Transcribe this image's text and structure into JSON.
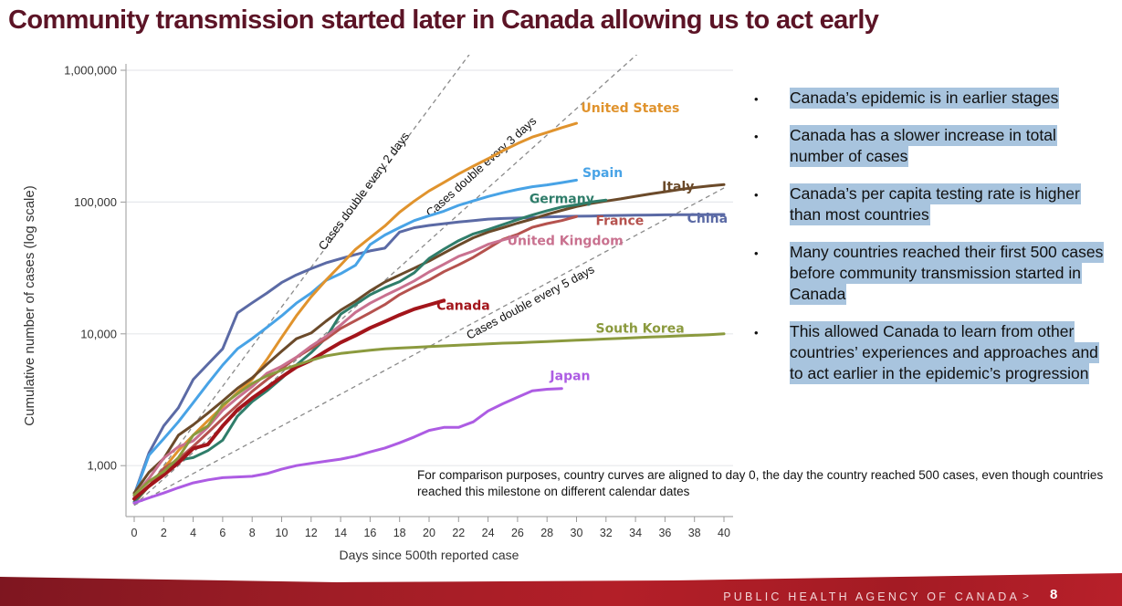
{
  "slide": {
    "title": "Community transmission started later in Canada allowing us to act early",
    "footer_org": "PUBLIC HEALTH AGENCY OF CANADA",
    "footer_chevron": ">",
    "page_number": "8"
  },
  "bullets": [
    "Canada’s epidemic is in earlier stages",
    "Canada has a slower increase in total number of cases",
    "Canada’s per capita testing rate is higher than most countries",
    "Many countries reached their first 500 cases before community transmission started in Canada",
    "This allowed Canada to learn from other countries’ experiences and approaches and to act earlier in the epidemic’s progression"
  ],
  "bullet_symbol": "•",
  "note": "For comparison purposes, country curves are aligned to day 0, the day the country reached 500 cases, even though countries reached this milestone on different calendar dates",
  "colors": {
    "title": "#5c1426",
    "highlight": "#a8c4de",
    "footer_red": "#b31f28"
  },
  "chart_data": {
    "type": "line",
    "title": "",
    "xlabel": "Days since 500th reported case",
    "ylabel": "Cumulative number of cases (log scale)",
    "yscale": "log",
    "xlim": [
      0,
      40
    ],
    "ylim": [
      417,
      1000000
    ],
    "x_ticks": [
      0,
      2,
      4,
      6,
      8,
      10,
      12,
      14,
      16,
      18,
      20,
      22,
      24,
      26,
      28,
      30,
      32,
      34,
      36,
      38,
      40
    ],
    "y_ticks": [
      1000,
      10000,
      100000,
      1000000
    ],
    "y_tick_labels": [
      "1,000",
      "10,000",
      "100,000",
      "1,000,000"
    ],
    "grid": "horizontal",
    "reference_lines": [
      {
        "label": "Cases double every 2 days",
        "doubling_days": 2,
        "start": 500
      },
      {
        "label": "Cases double every 3 days",
        "doubling_days": 3,
        "start": 500
      },
      {
        "label": "Cases double every 5 days",
        "doubling_days": 5,
        "start": 500
      }
    ],
    "series": [
      {
        "name": "China",
        "color": "#5b6aa5",
        "width": 3,
        "values": [
          600,
          1250,
          2000,
          2750,
          4500,
          5900,
          7700,
          14400,
          17200,
          20400,
          24500,
          28000,
          31200,
          34500,
          37200,
          40000,
          42600,
          44700,
          59200,
          63900,
          66500,
          68500,
          70500,
          72400,
          74200,
          75000,
          75600,
          76200,
          77000,
          77700,
          78100,
          78400,
          78800,
          79200,
          79500,
          79800,
          80000,
          80200,
          80300,
          80400,
          80500
        ]
      },
      {
        "name": "Spain",
        "color": "#48a3e6",
        "width": 3,
        "values": [
          590,
          1200,
          1600,
          2150,
          3000,
          4200,
          5800,
          7700,
          9200,
          11200,
          13700,
          17100,
          20400,
          25400,
          28600,
          33100,
          47600,
          56200,
          64000,
          72300,
          78700,
          85200,
          94400,
          102100,
          110200,
          117700,
          124700,
          130700,
          135000,
          140500,
          146700
        ]
      },
      {
        "name": "United States",
        "color": "#e0932d",
        "width": 3,
        "values": [
          520,
          700,
          950,
          1300,
          1700,
          2200,
          2800,
          3600,
          4500,
          6400,
          9400,
          13700,
          19100,
          25500,
          33300,
          43700,
          53700,
          65800,
          83800,
          101700,
          121500,
          140900,
          163400,
          187400,
          213300,
          245400,
          277800,
          311400,
          336800,
          366600,
          396200
        ]
      },
      {
        "name": "Italy",
        "color": "#6b4a2a",
        "width": 3,
        "values": [
          620,
          890,
          1130,
          1700,
          2040,
          2500,
          3090,
          3860,
          4640,
          5880,
          7380,
          9170,
          10150,
          12460,
          15110,
          17660,
          21160,
          24750,
          27980,
          31510,
          35710,
          41040,
          47020,
          53580,
          59140,
          63930,
          69180,
          74390,
          80590,
          86500,
          92470,
          97690,
          101740,
          105790,
          110570,
          115240,
          119830,
          124630,
          128950,
          132550,
          135590
        ]
      },
      {
        "name": "Germany",
        "color": "#2f7d6a",
        "width": 3,
        "values": [
          530,
          700,
          850,
          1100,
          1150,
          1300,
          1560,
          2370,
          3060,
          3700,
          4600,
          5800,
          7200,
          9300,
          14100,
          16700,
          19800,
          22400,
          24900,
          29100,
          37300,
          43900,
          50900,
          57300,
          61900,
          67400,
          73500,
          79700,
          85900,
          91700,
          95400,
          100100,
          103400
        ]
      },
      {
        "name": "France",
        "color": "#b5524e",
        "width": 3,
        "values": [
          560,
          700,
          950,
          1120,
          1400,
          1780,
          2280,
          2880,
          3660,
          4500,
          5420,
          6630,
          7730,
          9130,
          10990,
          12610,
          14460,
          16690,
          19860,
          22630,
          25600,
          29600,
          33400,
          38100,
          44500,
          52100,
          56900,
          64300,
          68600,
          72400,
          77600
        ]
      },
      {
        "name": "United Kingdom",
        "color": "#c9718f",
        "width": 3,
        "values": [
          590,
          800,
          1140,
          1390,
          1540,
          1960,
          2630,
          3270,
          3980,
          5020,
          5680,
          6650,
          8080,
          9530,
          11660,
          14550,
          17100,
          19500,
          22100,
          25200,
          29500,
          33700,
          38700,
          42500,
          47800,
          51600,
          55200
        ]
      },
      {
        "name": "Canada",
        "color": "#a3151b",
        "width": 4,
        "values": [
          560,
          700,
          850,
          1050,
          1350,
          1450,
          2000,
          2650,
          3250,
          3900,
          4700,
          5600,
          6300,
          7400,
          8600,
          9700,
          11100,
          12400,
          13900,
          15400,
          16600,
          17900
        ]
      },
      {
        "name": "South Korea",
        "color": "#8b9a3e",
        "width": 3,
        "values": [
          600,
          760,
          900,
          1150,
          1700,
          2000,
          2900,
          3500,
          4200,
          4800,
          5300,
          5800,
          6300,
          6800,
          7100,
          7300,
          7500,
          7700,
          7800,
          7900,
          8000,
          8100,
          8200,
          8300,
          8400,
          8500,
          8550,
          8650,
          8750,
          8850,
          8950,
          9050,
          9150,
          9250,
          9350,
          9450,
          9550,
          9650,
          9750,
          9850,
          10000
        ]
      },
      {
        "name": "Japan",
        "color": "#ad5ce3",
        "width": 3,
        "values": [
          520,
          570,
          620,
          680,
          740,
          780,
          810,
          820,
          830,
          870,
          940,
          1000,
          1040,
          1080,
          1120,
          1180,
          1270,
          1360,
          1490,
          1650,
          1850,
          1950,
          1950,
          2150,
          2600,
          2950,
          3300,
          3700,
          3800,
          3850
        ]
      }
    ],
    "series_labels": [
      {
        "name": "United States",
        "text": "United States",
        "day": 30.3,
        "value": 480000
      },
      {
        "name": "Spain",
        "text": "Spain",
        "day": 30.4,
        "value": 155000
      },
      {
        "name": "Italy",
        "text": "Italy",
        "day": 35.8,
        "value": 122000
      },
      {
        "name": "Germany",
        "text": "Germany",
        "day": 26.8,
        "value": 98000
      },
      {
        "name": "China",
        "text": "China",
        "day": 37.5,
        "value": 70000
      },
      {
        "name": "France",
        "text": "France",
        "day": 31.3,
        "value": 67000
      },
      {
        "name": "United Kingdom",
        "text": "United Kingdom",
        "day": 25.3,
        "value": 47000
      },
      {
        "name": "Canada",
        "text": "Canada",
        "day": 20.5,
        "value": 15200
      },
      {
        "name": "South Korea",
        "text": "South Korea",
        "day": 31.3,
        "value": 10200
      },
      {
        "name": "Japan",
        "text": "Japan",
        "day": 28.2,
        "value": 4450
      }
    ]
  }
}
